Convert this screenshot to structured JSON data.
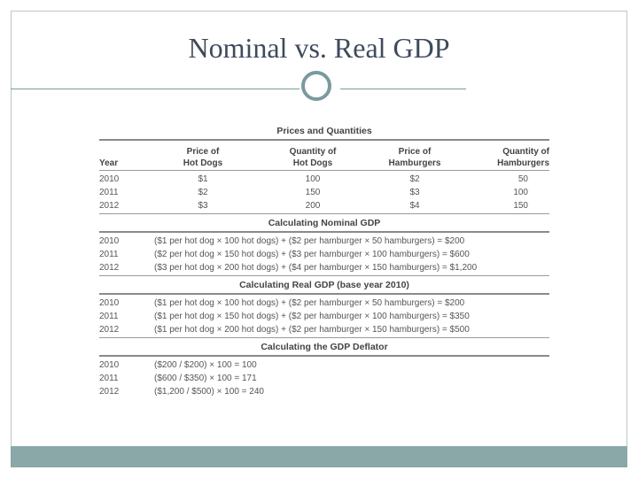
{
  "slide": {
    "title": "Nominal vs. Real GDP"
  },
  "table": {
    "prices_title": "Prices and Quantities",
    "headers": [
      "Year",
      "Price of\nHot Dogs",
      "Quantity of\nHot Dogs",
      "Price of\nHamburgers",
      "Quantity of\nHamburgers"
    ],
    "price_rows": [
      [
        "2010",
        "$1",
        "100",
        "$2",
        "50"
      ],
      [
        "2011",
        "$2",
        "150",
        "$3",
        "100"
      ],
      [
        "2012",
        "$3",
        "200",
        "$4",
        "150"
      ]
    ],
    "nominal_title": "Calculating Nominal GDP",
    "nominal_rows": [
      [
        "2010",
        "($1 per hot dog × 100 hot dogs) + ($2 per hamburger × 50 hamburgers) = $200"
      ],
      [
        "2011",
        "($2 per hot dog × 150 hot dogs) + ($3 per hamburger × 100 hamburgers) = $600"
      ],
      [
        "2012",
        "($3 per hot dog × 200 hot dogs) + ($4 per hamburger × 150 hamburgers) = $1,200"
      ]
    ],
    "real_title": "Calculating Real GDP (base year 2010)",
    "real_rows": [
      [
        "2010",
        "($1 per hot dog × 100 hot dogs) + ($2 per hamburger × 50 hamburgers) = $200"
      ],
      [
        "2011",
        "($1 per hot dog × 150 hot dogs) + ($2 per hamburger × 100 hamburgers) = $350"
      ],
      [
        "2012",
        "($1 per hot dog × 200 hot dogs) + ($2 per hamburger × 150 hamburgers) = $500"
      ]
    ],
    "deflator_title": "Calculating the GDP Deflator",
    "deflator_rows": [
      [
        "2010",
        "($200 / $200) × 100 = 100"
      ],
      [
        "2011",
        "($600 / $350) × 100 = 171"
      ],
      [
        "2012",
        "($1,200 / $500) × 100 = 240"
      ]
    ]
  }
}
